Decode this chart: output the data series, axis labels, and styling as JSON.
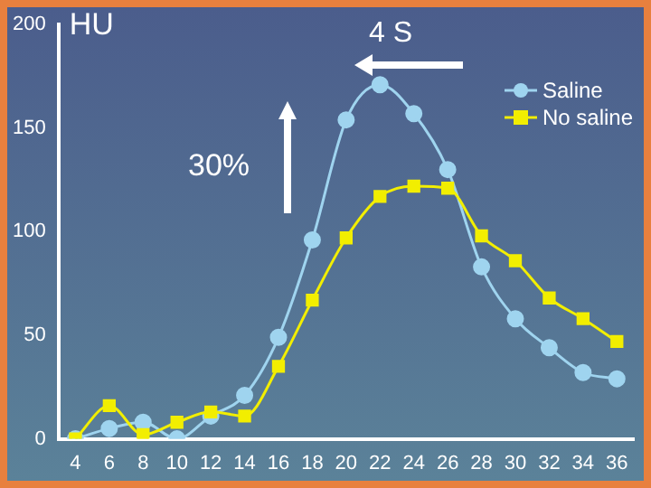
{
  "chart_data": {
    "type": "line",
    "ylabel": "HU",
    "categories": [
      "4",
      "6",
      "8",
      "10",
      "12",
      "14",
      "16",
      "18",
      "20",
      "22",
      "24",
      "26",
      "28",
      "30",
      "32",
      "34",
      "36"
    ],
    "series": [
      {
        "name": "Saline",
        "color": "#9fd4ef",
        "marker": "circle",
        "values": [
          0,
          5,
          8,
          0,
          11,
          21,
          49,
          96,
          154,
          171,
          157,
          130,
          83,
          58,
          44,
          32,
          29
        ]
      },
      {
        "name": "No saline",
        "color": "#f2ee00",
        "marker": "square",
        "values": [
          0,
          16,
          2,
          8,
          13,
          11,
          35,
          67,
          97,
          117,
          122,
          121,
          98,
          86,
          68,
          58,
          47
        ]
      }
    ],
    "ylim": [
      0,
      200
    ],
    "yticks": [
      0,
      50,
      100,
      150,
      200
    ],
    "grid": false,
    "legend": "top right",
    "annotations": [
      "4 S",
      "30%"
    ]
  }
}
